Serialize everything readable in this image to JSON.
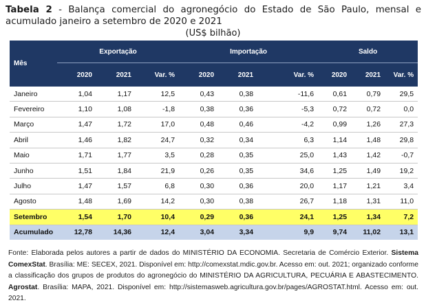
{
  "title": {
    "label": "Tabela 2",
    "text": " - Balança comercial do agronegócio do Estado de São Paulo, mensal e acumulado janeiro a setembro de 2020 e 2021"
  },
  "unit": "(US$ bilhão)",
  "header": {
    "month": "Mês",
    "groups": [
      "Exportação",
      "Importação",
      "Saldo"
    ],
    "subcols": [
      "2020",
      "2021",
      "Var. %",
      "2020",
      "2021",
      "Var. %",
      "2020",
      "2021",
      "Var. %"
    ]
  },
  "rows": [
    {
      "month": "Janeiro",
      "values": [
        "1,04",
        "1,17",
        "12,5",
        "0,43",
        "0,38",
        "-11,6",
        "0,61",
        "0,79",
        "29,5"
      ]
    },
    {
      "month": "Fevereiro",
      "values": [
        "1,10",
        "1,08",
        "-1,8",
        "0,38",
        "0,36",
        "-5,3",
        "0,72",
        "0,72",
        "0,0"
      ]
    },
    {
      "month": "Março",
      "values": [
        "1,47",
        "1,72",
        "17,0",
        "0,48",
        "0,46",
        "-4,2",
        "0,99",
        "1,26",
        "27,3"
      ]
    },
    {
      "month": "Abril",
      "values": [
        "1,46",
        "1,82",
        "24,7",
        "0,32",
        "0,34",
        "6,3",
        "1,14",
        "1,48",
        "29,8"
      ]
    },
    {
      "month": "Maio",
      "values": [
        "1,71",
        "1,77",
        "3,5",
        "0,28",
        "0,35",
        "25,0",
        "1,43",
        "1,42",
        "-0,7"
      ]
    },
    {
      "month": "Junho",
      "values": [
        "1,51",
        "1,84",
        "21,9",
        "0,26",
        "0,35",
        "34,6",
        "1,25",
        "1,49",
        "19,2"
      ]
    },
    {
      "month": "Julho",
      "values": [
        "1,47",
        "1,57",
        "6,8",
        "0,30",
        "0,36",
        "20,0",
        "1,17",
        "1,21",
        "3,4"
      ]
    },
    {
      "month": "Agosto",
      "values": [
        "1,48",
        "1,69",
        "14,2",
        "0,30",
        "0,38",
        "26,7",
        "1,18",
        "1,31",
        "11,0"
      ]
    }
  ],
  "setembro": {
    "month": "Setembro",
    "values": [
      "1,54",
      "1,70",
      "10,4",
      "0,29",
      "0,36",
      "24,1",
      "1,25",
      "1,34",
      "7,2"
    ]
  },
  "acumulado": {
    "month": "Acumulado",
    "values": [
      "12,78",
      "14,36",
      "12,4",
      "3,04",
      "3,34",
      "9,9",
      "9,74",
      "11,02",
      "13,1"
    ]
  },
  "colors": {
    "header_bg": "#1f3864",
    "highlight_row": "#ffff66",
    "total_row": "#c6d4ea"
  },
  "footnote": {
    "p1": "Fonte: Elaborada pelos autores a partir de dados do MINISTÉRIO DA ECONOMIA. Secretaria de Comércio Exterior. ",
    "b1": "Sistema ComexStat",
    "p2": ". Brasília: ME: SECEX, 2021. Disponível em: http://comexstat.mdic.gov.br. Acesso em: out. 2021; organizado conforme a classificação dos grupos de produtos do agronegócio do MINISTÉRIO DA AGRICULTURA, PECUÁRIA E ABASTECIMENTO. ",
    "b2": "Agrostat",
    "p3": ". Brasília: MAPA, 2021. Disponível em: http://sistemasweb.agricultura.gov.br/pages/AGROSTAT.html. Acesso em: out. 2021."
  }
}
